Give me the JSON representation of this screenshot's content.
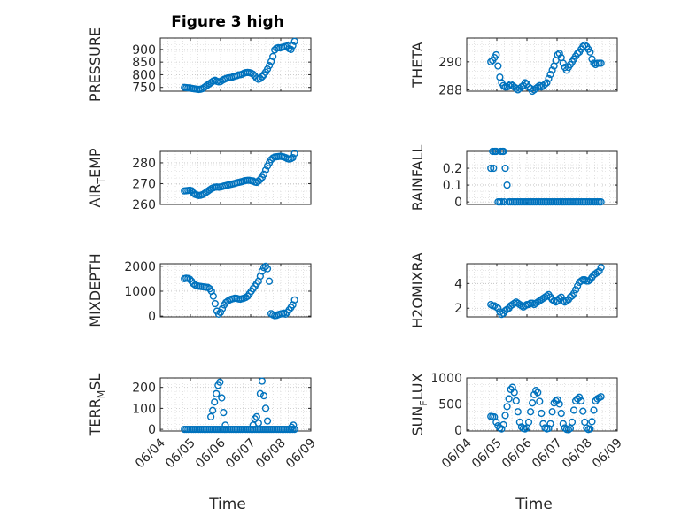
{
  "figure": {
    "title": "Figure 3 high",
    "xlabel": "Time",
    "x_tick_labels": [
      "06/04",
      "06/05",
      "06/06",
      "06/07",
      "06/08",
      "06/09"
    ],
    "marker_color": "#0072BD",
    "grid": "major+minor dotted"
  },
  "chart_data": [
    {
      "type": "scatter",
      "ylabel": "PRESSURE",
      "ylim": [
        735,
        945
      ],
      "yticks": [
        750,
        800,
        850,
        900
      ],
      "x": [
        4.8,
        4.86,
        4.92,
        4.98,
        5.04,
        5.1,
        5.16,
        5.22,
        5.28,
        5.34,
        5.4,
        5.46,
        5.52,
        5.58,
        5.64,
        5.7,
        5.76,
        5.82,
        5.88,
        5.94,
        6.0,
        6.06,
        6.12,
        6.18,
        6.24,
        6.3,
        6.36,
        6.42,
        6.48,
        6.54,
        6.6,
        6.66,
        6.72,
        6.78,
        6.84,
        6.9,
        6.96,
        7.02,
        7.08,
        7.14,
        7.2,
        7.26,
        7.32,
        7.38,
        7.44,
        7.5,
        7.56,
        7.62,
        7.68,
        7.74,
        7.8,
        7.86,
        7.92,
        7.98,
        8.04,
        8.1,
        8.16,
        8.22,
        8.28,
        8.34,
        8.4,
        8.46
      ],
      "y": [
        750,
        749,
        748,
        748,
        746,
        745,
        744,
        743,
        742,
        743,
        745,
        750,
        755,
        760,
        765,
        770,
        775,
        778,
        774,
        772,
        773,
        778,
        782,
        785,
        787,
        788,
        789,
        792,
        794,
        796,
        799,
        800,
        802,
        806,
        808,
        809,
        808,
        806,
        802,
        795,
        786,
        782,
        785,
        792,
        800,
        810,
        822,
        836,
        852,
        872,
        898,
        905,
        907,
        906,
        908,
        910,
        912,
        914,
        903,
        900,
        915,
        932
      ]
    },
    {
      "type": "scatter",
      "ylabel": "THETA",
      "ylim": [
        287.9,
        291.7
      ],
      "yticks": [
        288,
        290
      ],
      "x": [
        4.8,
        4.86,
        4.92,
        4.98,
        5.04,
        5.1,
        5.16,
        5.22,
        5.28,
        5.34,
        5.4,
        5.46,
        5.52,
        5.58,
        5.64,
        5.7,
        5.76,
        5.82,
        5.88,
        5.94,
        6.0,
        6.06,
        6.12,
        6.18,
        6.24,
        6.3,
        6.36,
        6.42,
        6.48,
        6.54,
        6.6,
        6.66,
        6.72,
        6.78,
        6.84,
        6.9,
        6.96,
        7.02,
        7.08,
        7.14,
        7.2,
        7.26,
        7.32,
        7.38,
        7.44,
        7.5,
        7.56,
        7.62,
        7.68,
        7.74,
        7.8,
        7.86,
        7.92,
        7.98,
        8.04,
        8.1,
        8.16,
        8.22,
        8.28,
        8.34,
        8.4,
        8.46
      ],
      "y": [
        290.0,
        290.1,
        290.3,
        290.5,
        289.7,
        288.9,
        288.5,
        288.3,
        288.2,
        288.2,
        288.3,
        288.4,
        288.3,
        288.2,
        288.1,
        288.0,
        288.1,
        288.2,
        288.3,
        288.5,
        288.4,
        288.2,
        288.1,
        287.9,
        288.0,
        288.1,
        288.2,
        288.3,
        288.2,
        288.3,
        288.4,
        288.5,
        288.8,
        289.1,
        289.4,
        289.7,
        290.1,
        290.5,
        290.6,
        290.3,
        289.9,
        289.6,
        289.4,
        289.6,
        289.8,
        290.0,
        290.2,
        290.4,
        290.6,
        290.7,
        290.9,
        291.1,
        291.2,
        291.1,
        290.9,
        290.7,
        290.2,
        289.9,
        289.8,
        289.9,
        289.9,
        289.9
      ]
    },
    {
      "type": "scatter",
      "ylabel": "AIR_TEMP",
      "ylim": [
        260,
        285.5
      ],
      "yticks": [
        260,
        270,
        280
      ],
      "x": [
        4.8,
        4.86,
        4.92,
        4.98,
        5.04,
        5.1,
        5.16,
        5.22,
        5.28,
        5.34,
        5.4,
        5.46,
        5.52,
        5.58,
        5.64,
        5.7,
        5.76,
        5.82,
        5.88,
        5.94,
        6.0,
        6.06,
        6.12,
        6.18,
        6.24,
        6.3,
        6.36,
        6.42,
        6.48,
        6.54,
        6.6,
        6.66,
        6.72,
        6.78,
        6.84,
        6.9,
        6.96,
        7.02,
        7.08,
        7.14,
        7.2,
        7.26,
        7.32,
        7.38,
        7.44,
        7.5,
        7.56,
        7.62,
        7.68,
        7.74,
        7.8,
        7.86,
        7.92,
        7.98,
        8.04,
        8.1,
        8.16,
        8.22,
        8.28,
        8.34,
        8.4,
        8.46
      ],
      "y": [
        266.5,
        266.6,
        266.7,
        266.8,
        266.6,
        265.5,
        264.8,
        264.5,
        264.3,
        264.4,
        264.7,
        265.2,
        265.8,
        266.4,
        267.0,
        267.6,
        268.0,
        268.3,
        268.4,
        268.3,
        268.4,
        268.6,
        268.9,
        269.1,
        269.3,
        269.5,
        269.7,
        269.9,
        270.1,
        270.4,
        270.6,
        270.8,
        271.0,
        271.3,
        271.5,
        271.6,
        271.6,
        271.4,
        271.3,
        270.8,
        270.6,
        271.2,
        272.0,
        273.0,
        274.5,
        276.5,
        278.5,
        280.0,
        281.5,
        282.3,
        282.8,
        282.9,
        283.0,
        283.1,
        283.0,
        282.8,
        282.5,
        282.0,
        281.8,
        282.0,
        282.5,
        284.5
      ]
    },
    {
      "type": "scatter",
      "ylabel": "RAINFALL",
      "ylim": [
        -0.015,
        0.3
      ],
      "yticks": [
        0,
        0.1,
        0.2
      ],
      "x": [
        4.8,
        4.86,
        4.92,
        4.98,
        5.04,
        5.1,
        5.16,
        5.22,
        5.28,
        5.34,
        5.4,
        5.46,
        5.52,
        5.58,
        5.64,
        5.7,
        5.76,
        5.82,
        5.88,
        5.94,
        6.0,
        6.06,
        6.12,
        6.18,
        6.24,
        6.3,
        6.36,
        6.42,
        6.48,
        6.54,
        6.6,
        6.66,
        6.72,
        6.78,
        6.84,
        6.9,
        6.96,
        7.02,
        7.08,
        7.14,
        7.2,
        7.26,
        7.32,
        7.38,
        7.44,
        7.5,
        7.56,
        7.62,
        7.68,
        7.74,
        7.8,
        7.86,
        7.92,
        7.98,
        8.04,
        8.1,
        8.16,
        8.22,
        8.28,
        8.34,
        8.4,
        8.46,
        4.89,
        4.95,
        5.13,
        5.19,
        5.25
      ],
      "y": [
        0.2,
        0.3,
        0.3,
        0.3,
        0,
        0,
        0,
        0.3,
        0.2,
        0.1,
        0,
        0,
        0,
        0,
        0,
        0,
        0,
        0,
        0,
        0,
        0,
        0,
        0,
        0,
        0,
        0,
        0,
        0,
        0,
        0,
        0,
        0,
        0,
        0,
        0,
        0,
        0,
        0,
        0,
        0,
        0,
        0,
        0,
        0,
        0,
        0,
        0,
        0,
        0,
        0,
        0,
        0,
        0,
        0,
        0,
        0,
        0,
        0,
        0,
        0,
        0,
        0,
        0.2,
        0.3,
        0.3,
        0.3,
        0
      ]
    },
    {
      "type": "scatter",
      "ylabel": "MIXDEPTH",
      "ylim": [
        -30,
        2100
      ],
      "yticks": [
        0,
        1000,
        2000
      ],
      "x": [
        4.8,
        4.86,
        4.92,
        4.98,
        5.04,
        5.1,
        5.16,
        5.22,
        5.28,
        5.34,
        5.4,
        5.46,
        5.52,
        5.58,
        5.64,
        5.7,
        5.76,
        5.82,
        5.88,
        5.94,
        6.0,
        6.06,
        6.12,
        6.18,
        6.24,
        6.3,
        6.36,
        6.42,
        6.48,
        6.54,
        6.6,
        6.66,
        6.72,
        6.78,
        6.84,
        6.9,
        6.96,
        7.02,
        7.08,
        7.14,
        7.2,
        7.26,
        7.32,
        7.38,
        7.44,
        7.5,
        7.56,
        7.62,
        7.68,
        7.74,
        7.8,
        7.86,
        7.92,
        7.98,
        8.04,
        8.1,
        8.16,
        8.22,
        8.28,
        8.34,
        8.4,
        8.46
      ],
      "y": [
        1500,
        1520,
        1510,
        1480,
        1400,
        1300,
        1250,
        1220,
        1200,
        1190,
        1180,
        1170,
        1160,
        1150,
        1100,
        1000,
        800,
        500,
        200,
        80,
        150,
        300,
        450,
        550,
        600,
        650,
        680,
        700,
        720,
        710,
        690,
        680,
        700,
        720,
        750,
        800,
        900,
        1000,
        1100,
        1200,
        1300,
        1400,
        1600,
        1800,
        1950,
        2000,
        1900,
        1400,
        100,
        50,
        20,
        30,
        60,
        80,
        100,
        120,
        80,
        150,
        250,
        350,
        450,
        650
      ]
    },
    {
      "type": "scatter",
      "ylabel": "H2OMIXRA",
      "ylim": [
        1.3,
        5.6
      ],
      "yticks": [
        2,
        4
      ],
      "x": [
        4.8,
        4.86,
        4.92,
        4.98,
        5.04,
        5.1,
        5.16,
        5.22,
        5.28,
        5.34,
        5.4,
        5.46,
        5.52,
        5.58,
        5.64,
        5.7,
        5.76,
        5.82,
        5.88,
        5.94,
        6.0,
        6.06,
        6.12,
        6.18,
        6.24,
        6.3,
        6.36,
        6.42,
        6.48,
        6.54,
        6.6,
        6.66,
        6.72,
        6.78,
        6.84,
        6.9,
        6.96,
        7.02,
        7.08,
        7.14,
        7.2,
        7.26,
        7.32,
        7.38,
        7.44,
        7.5,
        7.56,
        7.62,
        7.68,
        7.74,
        7.8,
        7.86,
        7.92,
        7.98,
        8.04,
        8.1,
        8.16,
        8.22,
        8.28,
        8.34,
        8.4,
        8.46
      ],
      "y": [
        2.3,
        2.2,
        2.2,
        2.1,
        2.0,
        1.7,
        1.5,
        1.6,
        1.8,
        1.9,
        2.0,
        2.2,
        2.3,
        2.4,
        2.5,
        2.4,
        2.3,
        2.2,
        2.1,
        2.2,
        2.3,
        2.3,
        2.4,
        2.4,
        2.3,
        2.4,
        2.5,
        2.6,
        2.7,
        2.8,
        2.9,
        3.0,
        3.1,
        2.9,
        2.7,
        2.6,
        2.5,
        2.6,
        2.8,
        2.9,
        2.6,
        2.5,
        2.6,
        2.7,
        2.9,
        3.0,
        3.2,
        3.5,
        3.8,
        4.1,
        4.2,
        4.3,
        4.3,
        4.2,
        4.2,
        4.3,
        4.5,
        4.7,
        4.8,
        4.9,
        5.0,
        5.3
      ]
    },
    {
      "type": "scatter",
      "ylabel": "TERR_MSL",
      "ylim": [
        -8,
        245
      ],
      "yticks": [
        0,
        100,
        200
      ],
      "x": [
        4.8,
        4.86,
        4.92,
        4.98,
        5.04,
        5.1,
        5.16,
        5.22,
        5.28,
        5.34,
        5.4,
        5.46,
        5.52,
        5.58,
        5.64,
        5.7,
        5.76,
        5.82,
        5.88,
        5.94,
        6.0,
        6.06,
        6.12,
        6.18,
        6.24,
        6.3,
        6.36,
        6.42,
        6.48,
        6.54,
        6.6,
        6.66,
        6.72,
        6.78,
        6.84,
        6.9,
        6.96,
        7.02,
        7.08,
        7.14,
        7.2,
        7.26,
        7.32,
        7.38,
        7.44,
        7.5,
        7.56,
        7.62,
        7.68,
        7.74,
        7.8,
        7.86,
        7.92,
        7.98,
        8.04,
        8.1,
        8.16,
        8.22,
        8.28,
        8.34,
        8.4,
        8.46
      ],
      "y": [
        0,
        0,
        0,
        0,
        0,
        0,
        0,
        0,
        0,
        0,
        0,
        0,
        0,
        0,
        0,
        0,
        0,
        0,
        0,
        0,
        0,
        0,
        0,
        0,
        0,
        0,
        0,
        0,
        0,
        0,
        0,
        0,
        0,
        0,
        0,
        0,
        0,
        0,
        0,
        0,
        0,
        0,
        0,
        0,
        0,
        0,
        0,
        0,
        0,
        0,
        0,
        0,
        0,
        0,
        0,
        0,
        0,
        0,
        0,
        0,
        0,
        0
      ],
      "extra_x": [
        5.68,
        5.74,
        5.8,
        5.86,
        5.92,
        5.98,
        6.04,
        6.1,
        6.16,
        7.08,
        7.14,
        7.2,
        7.26,
        7.32,
        7.38,
        7.44,
        7.5,
        7.56,
        8.36,
        8.42
      ],
      "extra_y": [
        60,
        90,
        130,
        170,
        210,
        225,
        150,
        80,
        20,
        20,
        50,
        60,
        30,
        170,
        230,
        160,
        100,
        40,
        10,
        20
      ]
    },
    {
      "type": "scatter",
      "ylabel": "SUN_FLUX",
      "ylim": [
        -20,
        1000
      ],
      "yticks": [
        0,
        500,
        1000
      ],
      "x": [
        4.8,
        4.86,
        4.92,
        4.98,
        5.04,
        5.1,
        5.16,
        5.22,
        5.28,
        5.34,
        5.4,
        5.46,
        5.52,
        5.58,
        5.64,
        5.7,
        5.76,
        5.82,
        5.88,
        5.94,
        6.0,
        6.06,
        6.12,
        6.18,
        6.24,
        6.3,
        6.36,
        6.42,
        6.48,
        6.54,
        6.6,
        6.66,
        6.72,
        6.78,
        6.84,
        6.9,
        6.96,
        7.02,
        7.08,
        7.14,
        7.2,
        7.26,
        7.32,
        7.38,
        7.44,
        7.5,
        7.56,
        7.62,
        7.68,
        7.74,
        7.8,
        7.86,
        7.92,
        7.98,
        8.04,
        8.1,
        8.16,
        8.22,
        8.28,
        8.34,
        8.4,
        8.46
      ],
      "y": [
        260,
        255,
        250,
        150,
        80,
        40,
        20,
        100,
        280,
        450,
        600,
        780,
        820,
        720,
        560,
        350,
        150,
        60,
        30,
        20,
        40,
        150,
        350,
        520,
        680,
        760,
        720,
        550,
        320,
        120,
        40,
        20,
        30,
        120,
        350,
        520,
        560,
        580,
        500,
        320,
        120,
        40,
        10,
        5,
        30,
        150,
        380,
        560,
        600,
        630,
        560,
        360,
        150,
        40,
        10,
        20,
        160,
        380,
        560,
        600,
        620,
        640
      ]
    }
  ]
}
